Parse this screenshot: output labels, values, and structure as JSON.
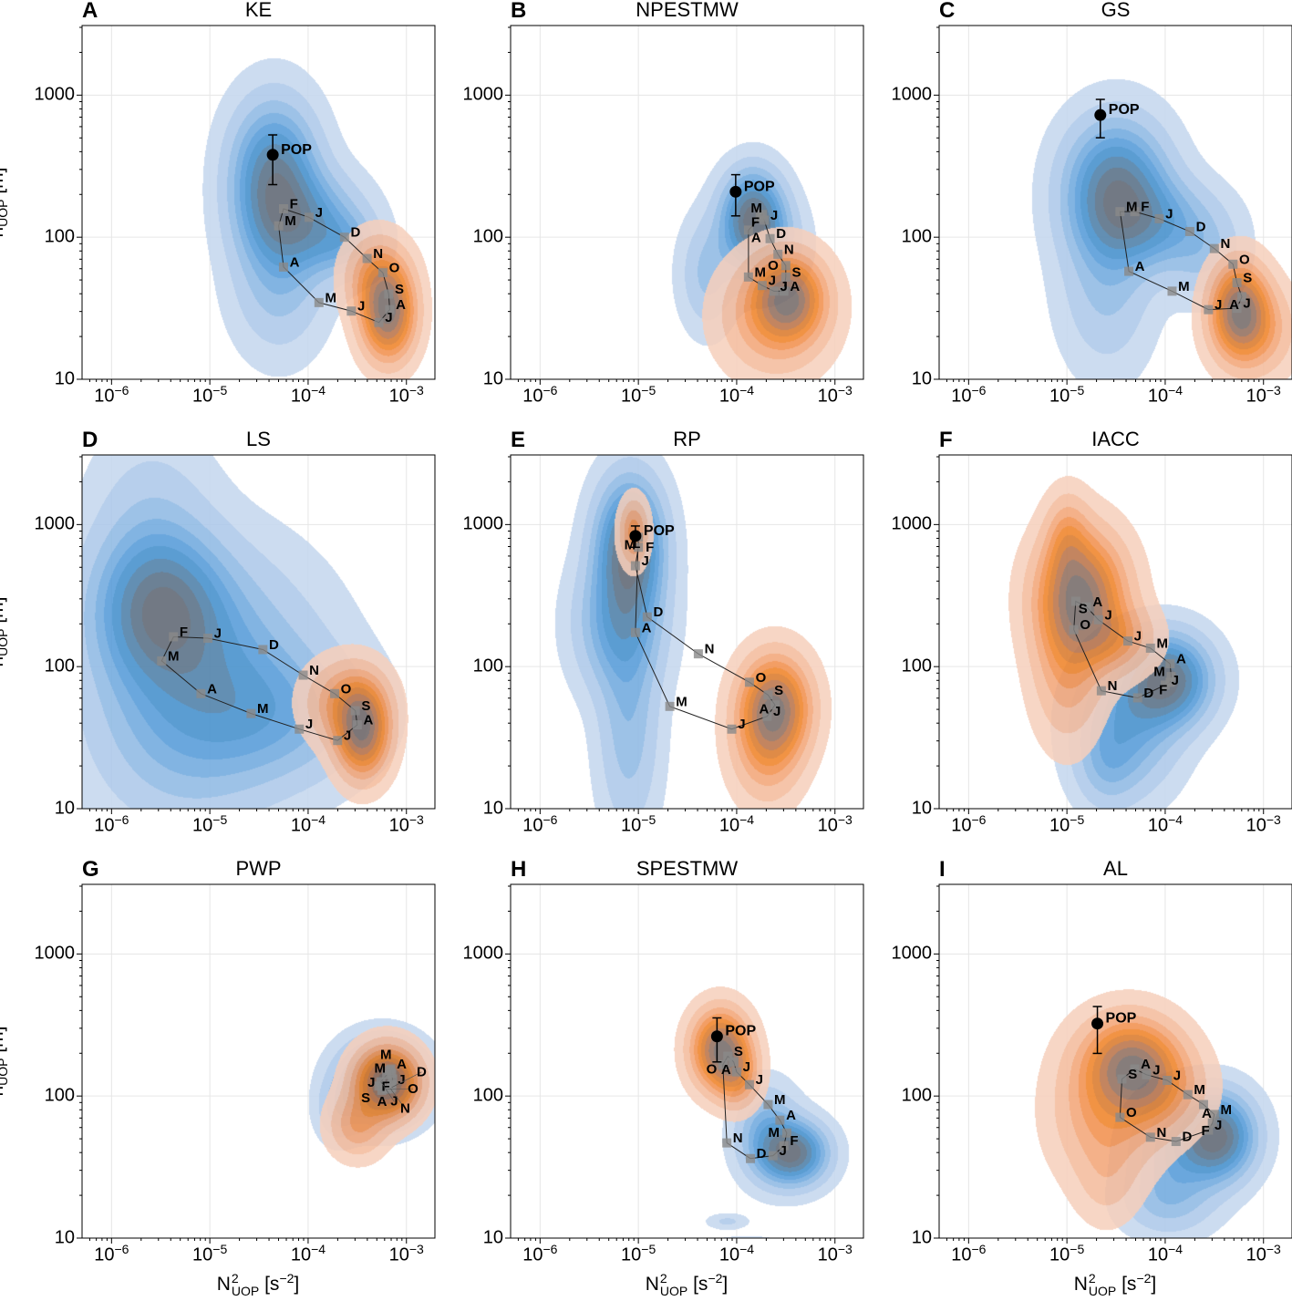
{
  "chart_data": {
    "type": "scatter",
    "note": "9 panels; points given as log10 of N2 [s^-2] and log10 of h [m]; density components are gaussian KDE approximations in log10 units",
    "x_axis": {
      "label_main": "N",
      "label_sup": "2",
      "label_sub": "UOP",
      "label_unit_pre": " [s",
      "label_unit_sup": "−2",
      "label_unit_post": "]",
      "log10_range": [
        -6.3,
        -2.71
      ],
      "scale": "log"
    },
    "y_axis": {
      "label_main": "h",
      "label_sub": "UOP",
      "label_unit": " [m]",
      "log10_range": [
        1,
        3.49
      ],
      "scale": "log"
    },
    "x_ticks": [
      {
        "log10": -6,
        "base": "10",
        "exp": "−6"
      },
      {
        "log10": -5,
        "base": "10",
        "exp": "−5"
      },
      {
        "log10": -4,
        "base": "10",
        "exp": "−4"
      },
      {
        "log10": -3,
        "base": "10",
        "exp": "−3"
      }
    ],
    "y_ticks": [
      {
        "log10": 1,
        "label": "10"
      },
      {
        "log10": 2,
        "label": "100"
      },
      {
        "log10": 3,
        "label": "1000"
      }
    ],
    "grid": true,
    "month_labels": [
      "J",
      "F",
      "M",
      "A",
      "M",
      "J",
      "J",
      "A",
      "S",
      "O",
      "N",
      "D"
    ],
    "pop_label": "POP",
    "colors": {
      "blue_levels": [
        "#c5d7ee",
        "#adc8e9",
        "#8fb9e4",
        "#71aade",
        "#559bd8",
        "#448fcc",
        "#4d80a8",
        "#586f86",
        "#5f6673"
      ],
      "orange_levels": [
        "#f6d0bd",
        "#f4bc9d",
        "#f2a679",
        "#f1914f",
        "#ef842a",
        "#db7b2e",
        "#bb744a",
        "#93705f",
        "#756b69"
      ],
      "line": "#222222",
      "marker": "#8a8a8a"
    },
    "panels": [
      {
        "letter": "A",
        "title": "KE",
        "months": [
          [
            -3.99,
            2.14
          ],
          [
            -4.25,
            2.2
          ],
          [
            -4.3,
            2.08
          ],
          [
            -4.25,
            1.79
          ],
          [
            -3.89,
            1.54
          ],
          [
            -3.56,
            1.48
          ],
          [
            -3.28,
            1.4
          ],
          [
            -3.17,
            1.49
          ],
          [
            -3.18,
            1.6
          ],
          [
            -3.24,
            1.75
          ],
          [
            -3.4,
            1.85
          ],
          [
            -3.63,
            2.0
          ]
        ],
        "pop": {
          "x": -4.36,
          "y": 2.58,
          "y_err": [
            2.37,
            2.72
          ]
        },
        "blue": [
          [
            -4.35,
            2.42,
            0.28,
            0.33,
            1
          ],
          [
            -4.0,
            2.1,
            0.35,
            0.22,
            0.6
          ],
          [
            -4.3,
            1.7,
            0.3,
            0.33,
            0.32
          ],
          [
            -3.6,
            1.95,
            0.22,
            0.14,
            0.3
          ]
        ],
        "orange": [
          [
            -3.19,
            1.46,
            0.17,
            0.2,
            1
          ],
          [
            -3.3,
            1.72,
            0.2,
            0.18,
            0.4
          ]
        ]
      },
      {
        "letter": "B",
        "title": "NPESTMW",
        "months": [
          [
            -3.72,
            2.12
          ],
          [
            -3.74,
            2.16
          ],
          [
            -3.76,
            2.14
          ],
          [
            -3.88,
            2.05
          ],
          [
            -3.88,
            1.72
          ],
          [
            -3.74,
            1.66
          ],
          [
            -3.62,
            1.62
          ],
          [
            -3.52,
            1.62
          ],
          [
            -3.5,
            1.72
          ],
          [
            -3.5,
            1.8
          ],
          [
            -3.58,
            1.88
          ],
          [
            -3.66,
            1.99
          ]
        ],
        "pop": {
          "x": -4.01,
          "y": 2.32,
          "y_err": [
            2.15,
            2.44
          ]
        },
        "blue": [
          [
            -3.84,
            2.16,
            0.2,
            0.2,
            1
          ],
          [
            -3.75,
            1.95,
            0.25,
            0.2,
            0.4
          ],
          [
            -4.3,
            1.74,
            0.18,
            0.25,
            0.28
          ]
        ],
        "orange": [
          [
            -3.47,
            1.58,
            0.22,
            0.18,
            1
          ],
          [
            -3.62,
            1.45,
            0.33,
            0.25,
            0.5
          ]
        ]
      },
      {
        "letter": "C",
        "title": "GS",
        "months": [
          [
            -4.06,
            2.13
          ],
          [
            -4.31,
            2.18
          ],
          [
            -4.46,
            2.18
          ],
          [
            -4.37,
            1.76
          ],
          [
            -3.93,
            1.62
          ],
          [
            -3.56,
            1.49
          ],
          [
            -3.27,
            1.5
          ],
          [
            -3.22,
            1.58
          ],
          [
            -3.27,
            1.68
          ],
          [
            -3.31,
            1.81
          ],
          [
            -3.5,
            1.92
          ],
          [
            -3.75,
            2.04
          ]
        ],
        "pop": {
          "x": -4.66,
          "y": 2.86,
          "y_err": [
            2.7,
            2.97
          ]
        },
        "blue": [
          [
            -4.5,
            2.35,
            0.33,
            0.3,
            1
          ],
          [
            -4.1,
            2.1,
            0.4,
            0.2,
            0.5
          ],
          [
            -4.6,
            1.7,
            0.3,
            0.4,
            0.3
          ],
          [
            -3.6,
            1.85,
            0.25,
            0.2,
            0.22
          ]
        ],
        "orange": [
          [
            -3.25,
            1.5,
            0.18,
            0.2,
            1
          ],
          [
            -3.1,
            1.35,
            0.25,
            0.2,
            0.4
          ]
        ]
      },
      {
        "letter": "D",
        "title": "LS",
        "months": [
          [
            -5.02,
            2.2
          ],
          [
            -5.37,
            2.21
          ],
          [
            -5.49,
            2.04
          ],
          [
            -5.09,
            1.81
          ],
          [
            -4.58,
            1.67
          ],
          [
            -4.09,
            1.56
          ],
          [
            -3.7,
            1.48
          ],
          [
            -3.5,
            1.59
          ],
          [
            -3.52,
            1.69
          ],
          [
            -3.73,
            1.81
          ],
          [
            -4.05,
            1.94
          ],
          [
            -4.46,
            2.12
          ]
        ],
        "pop": null,
        "blue": [
          [
            -5.5,
            2.4,
            0.42,
            0.33,
            1
          ],
          [
            -5.0,
            2.0,
            0.7,
            0.5,
            0.6
          ],
          [
            -4.3,
            1.65,
            0.6,
            0.3,
            0.4
          ],
          [
            -5.6,
            2.85,
            0.4,
            0.5,
            0.3
          ],
          [
            -5.3,
            1.5,
            0.6,
            0.45,
            0.3
          ]
        ],
        "orange": [
          [
            -3.45,
            1.55,
            0.17,
            0.2,
            1
          ],
          [
            -3.62,
            1.75,
            0.25,
            0.18,
            0.4
          ]
        ]
      },
      {
        "letter": "E",
        "title": "RP",
        "months": [
          [
            -5.03,
            2.71
          ],
          [
            -5.0,
            2.84
          ],
          [
            -5.0,
            2.91
          ],
          [
            -5.03,
            2.24
          ],
          [
            -4.68,
            1.72
          ],
          [
            -4.05,
            1.56
          ],
          [
            -3.69,
            1.65
          ],
          [
            -3.61,
            1.73
          ],
          [
            -3.68,
            1.8
          ],
          [
            -3.87,
            1.89
          ],
          [
            -4.39,
            2.09
          ],
          [
            -4.91,
            2.35
          ]
        ],
        "pop": {
          "x": -5.03,
          "y": 2.92,
          "y_err": [
            2.84,
            2.99
          ]
        },
        "blue": [
          [
            -5.09,
            2.85,
            0.22,
            0.3,
            1
          ],
          [
            -5.2,
            2.3,
            0.28,
            0.3,
            0.5
          ],
          [
            -5.1,
            1.6,
            0.2,
            0.5,
            0.3
          ]
        ],
        "orange": [
          [
            -3.61,
            1.72,
            0.22,
            0.22,
            1
          ],
          [
            -5.05,
            2.95,
            0.09,
            0.14,
            0.45
          ],
          [
            -3.7,
            1.45,
            0.22,
            0.25,
            0.4
          ]
        ]
      },
      {
        "letter": "F",
        "title": "IACC",
        "months": [
          [
            -4.0,
            1.87
          ],
          [
            -3.95,
            1.89
          ],
          [
            -3.94,
            1.93
          ],
          [
            -3.95,
            2.02
          ],
          [
            -4.15,
            2.13
          ],
          [
            -4.38,
            2.18
          ],
          [
            -4.68,
            2.33
          ],
          [
            -4.8,
            2.42
          ],
          [
            -4.91,
            2.46
          ],
          [
            -4.93,
            2.26
          ],
          [
            -4.65,
            1.83
          ],
          [
            -4.28,
            1.78
          ]
        ],
        "pop": null,
        "blue": [
          [
            -3.98,
            1.91,
            0.28,
            0.2,
            1
          ],
          [
            -4.4,
            1.6,
            0.33,
            0.3,
            0.5
          ],
          [
            -4.6,
            1.3,
            0.2,
            0.2,
            0.2
          ]
        ],
        "orange": [
          [
            -4.86,
            2.49,
            0.28,
            0.28,
            1
          ],
          [
            -5.0,
            2.9,
            0.14,
            0.2,
            0.3
          ],
          [
            -5.0,
            2.0,
            0.22,
            0.33,
            0.3
          ],
          [
            -4.5,
            2.2,
            0.25,
            0.15,
            0.3
          ]
        ]
      },
      {
        "letter": "G",
        "title": "PWP",
        "months": [
          [
            -3.15,
            2.08
          ],
          [
            -3.14,
            2.12
          ],
          [
            -3.15,
            2.16
          ],
          [
            -3.16,
            2.19
          ],
          [
            -3.17,
            2.18
          ],
          [
            -3.2,
            2.15
          ],
          [
            -3.26,
            2.1
          ],
          [
            -3.28,
            2.07
          ],
          [
            -3.25,
            2.04
          ],
          [
            -3.2,
            2.05
          ],
          [
            -3.16,
            2.05
          ],
          [
            -3.15,
            2.06
          ]
        ],
        "pop": null,
        "blue": [
          [
            -3.25,
            2.1,
            0.26,
            0.17,
            1
          ],
          [
            -3.7,
            1.9,
            0.14,
            0.14,
            0.2
          ]
        ],
        "orange": [
          [
            -3.2,
            2.1,
            0.2,
            0.15,
            1
          ],
          [
            -3.5,
            1.8,
            0.18,
            0.14,
            0.3
          ]
        ]
      },
      {
        "letter": "H",
        "title": "SPESTMW",
        "months": [
          [
            -3.63,
            1.58
          ],
          [
            -3.52,
            1.65
          ],
          [
            -3.49,
            1.74
          ],
          [
            -3.56,
            1.83
          ],
          [
            -3.68,
            1.94
          ],
          [
            -3.87,
            2.08
          ],
          [
            -4.0,
            2.17
          ],
          [
            -4.03,
            2.24
          ],
          [
            -4.09,
            2.28
          ],
          [
            -4.14,
            2.22
          ],
          [
            -4.1,
            1.67
          ],
          [
            -3.86,
            1.56
          ]
        ],
        "pop": {
          "x": -4.2,
          "y": 2.42,
          "y_err": [
            2.24,
            2.55
          ]
        },
        "blue": [
          [
            -3.43,
            1.6,
            0.22,
            0.14,
            1
          ],
          [
            -3.7,
            1.75,
            0.2,
            0.2,
            0.4
          ],
          [
            -4.1,
            1.12,
            0.13,
            0.035,
            0.14
          ],
          [
            -3.9,
            0.95,
            0.25,
            0.04,
            0.14
          ]
        ],
        "orange": [
          [
            -4.17,
            2.33,
            0.18,
            0.17,
            1
          ],
          [
            -4.0,
            2.15,
            0.14,
            0.14,
            0.4
          ]
        ]
      },
      {
        "letter": "I",
        "title": "AL",
        "months": [
          [
            -3.56,
            1.76
          ],
          [
            -3.52,
            1.81
          ],
          [
            -3.5,
            1.87
          ],
          [
            -3.61,
            1.94
          ],
          [
            -3.77,
            2.01
          ],
          [
            -3.98,
            2.11
          ],
          [
            -4.19,
            2.15
          ],
          [
            -4.31,
            2.19
          ],
          [
            -4.44,
            2.12
          ],
          [
            -4.46,
            1.85
          ],
          [
            -4.15,
            1.71
          ],
          [
            -3.89,
            1.68
          ]
        ],
        "pop": {
          "x": -4.69,
          "y": 2.51,
          "y_err": [
            2.3,
            2.63
          ]
        },
        "blue": [
          [
            -3.47,
            1.72,
            0.24,
            0.19,
            1
          ],
          [
            -3.9,
            1.6,
            0.3,
            0.25,
            0.4
          ],
          [
            -4.0,
            1.25,
            0.3,
            0.15,
            0.2
          ]
        ],
        "orange": [
          [
            -4.35,
            2.24,
            0.3,
            0.2,
            1
          ],
          [
            -4.6,
            1.9,
            0.33,
            0.3,
            0.5
          ],
          [
            -4.1,
            2.05,
            0.3,
            0.2,
            0.5
          ],
          [
            -4.6,
            1.4,
            0.2,
            0.2,
            0.15
          ]
        ]
      }
    ]
  }
}
